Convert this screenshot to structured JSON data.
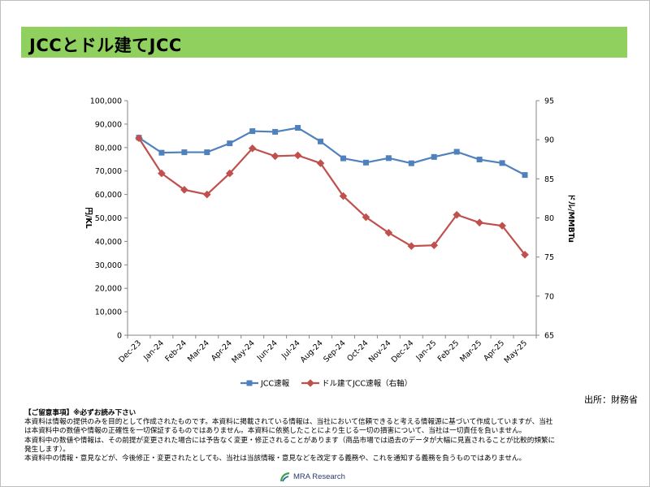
{
  "page": {
    "title": "JCCとドル建てJCC",
    "source": "出所：財務省"
  },
  "notice": {
    "heading": "【ご留意事項】※必ずお読み下さい",
    "lines": [
      "本資料は情報の提供のみを目的として作成されたものです。本資料に掲載されている情報は、当社において信頼できると考える情報源に基づいて作成していますが、当社",
      "は本資料中の数値や情報の正確性を一切保証するものではありません。本資料に依拠したことにより生じる一切の損害について、当社は一切責任を負いません。",
      "本資料中の数値や情報は、その前提が変更された場合には予告なく変更・修正されることがあります（商品市場では過去のデータが大幅に見直されることが比較的頻繁に",
      "発生します）。",
      "本資料中の情報・意見などが、今後修正・変更されたとしても、当社は当該情報・意見などを改定する義務や、これを通知する義務を負うものではありません。"
    ]
  },
  "logo": {
    "text": "MRA Research"
  },
  "chart_data": {
    "type": "line",
    "title": "",
    "categories": [
      "Dec-23",
      "Jan-24",
      "Feb-24",
      "Mar-24",
      "Apr-24",
      "May-24",
      "Jun-24",
      "Jul-24",
      "Aug-24",
      "Sep-24",
      "Oct-24",
      "Nov-24",
      "Dec-24",
      "Jan-25",
      "Feb-25",
      "Mar-25",
      "Apr-25",
      "May-25"
    ],
    "ylabel": "円/KL",
    "y2label": "ドル/MMBTu",
    "ylim": [
      0,
      100000
    ],
    "y2lim": [
      65,
      95
    ],
    "yticks": [
      "0",
      "10,000",
      "20,000",
      "30,000",
      "40,000",
      "50,000",
      "60,000",
      "70,000",
      "80,000",
      "90,000",
      "100,000"
    ],
    "y2ticks": [
      "65",
      "70",
      "75",
      "80",
      "85",
      "90",
      "95"
    ],
    "grid": false,
    "legend_position": "bottom",
    "series": [
      {
        "name": "JCC速報",
        "axis": "left",
        "color": "#4f81bd",
        "marker": "square",
        "values": [
          84200,
          77800,
          78000,
          78000,
          81800,
          87000,
          86700,
          88400,
          82600,
          75400,
          73600,
          75500,
          73300,
          76000,
          78200,
          74900,
          73400,
          68300
        ]
      },
      {
        "name": "ドル建てJCC速報（右軸）",
        "axis": "right",
        "color": "#c0504d",
        "marker": "diamond",
        "values": [
          90.2,
          85.7,
          83.6,
          83.0,
          85.7,
          88.9,
          87.9,
          88.0,
          87.0,
          82.8,
          80.1,
          78.1,
          76.4,
          76.5,
          80.4,
          79.4,
          79.0,
          75.3
        ]
      }
    ]
  }
}
